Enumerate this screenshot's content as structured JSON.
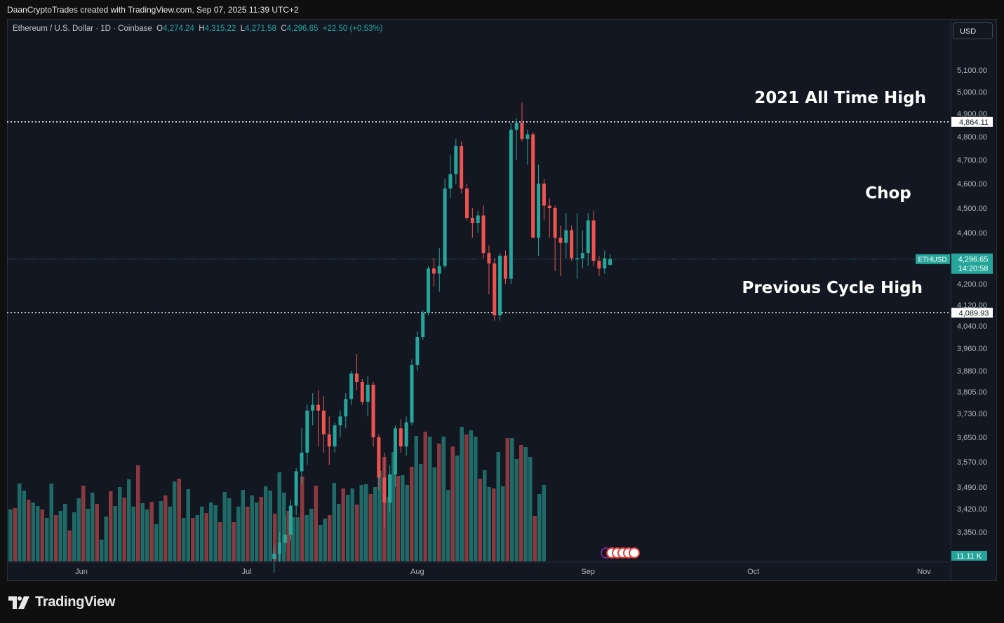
{
  "header": {
    "attribution": "DaanCryptoTrades created with TradingView.com, Sep 07, 2025 11:39 UTC+2"
  },
  "legend": {
    "symbol": "Ethereum / U.S. Dollar · 1D · Coinbase",
    "open_label": "O",
    "open": "4,274.24",
    "high_label": "H",
    "high": "4,315.22",
    "low_label": "L",
    "low": "4,271.58",
    "close_label": "C",
    "close": "4,296.65",
    "change": "+22.50 (+0.53%)"
  },
  "currency": "USD",
  "brand": "TradingView",
  "colors": {
    "up": "#26a69a",
    "down": "#ef5350",
    "up_vol": "#1f6a66",
    "down_vol": "#8a3a3f",
    "background": "#131722",
    "axis_text": "#b2b5be"
  },
  "chart_data": {
    "type": "candlestick",
    "symbol": "ETHUSD",
    "yticks": [
      "5,100.00",
      "5,000.00",
      "4,900.00",
      "4,800.00",
      "4,700.00",
      "4,600.00",
      "4,500.00",
      "4,400.00",
      "4,200.00",
      "4,120.00",
      "4,040.00",
      "3,960.00",
      "3,880.00",
      "3,805.00",
      "3,730.00",
      "3,650.00",
      "3,570.00",
      "3,490.00",
      "3,420.00",
      "3,350.00"
    ],
    "xticks": [
      "Jun",
      "Jul",
      "Aug",
      "Sep",
      "Oct",
      "Nov"
    ],
    "last_price": {
      "label": "ETHUSD",
      "value": "4,296.65",
      "countdown": "14:20:58"
    },
    "volume_label": "11.11 K",
    "lines": [
      {
        "value": "4,864.11",
        "label": "2021 All Time High"
      },
      {
        "value": "4,089.93",
        "label": "Previous Cycle High"
      }
    ],
    "annotations": [
      "Chop"
    ],
    "candles_start": "2025-07-06",
    "candles": [
      [
        3250,
        3300,
        3200,
        3270
      ],
      [
        3270,
        3350,
        3240,
        3310
      ],
      [
        3310,
        3400,
        3280,
        3340
      ],
      [
        3340,
        3450,
        3320,
        3430
      ],
      [
        3430,
        3550,
        3400,
        3540
      ],
      [
        3540,
        3680,
        3500,
        3600
      ],
      [
        3600,
        3760,
        3560,
        3740
      ],
      [
        3740,
        3800,
        3690,
        3760
      ],
      [
        3760,
        3810,
        3620,
        3740
      ],
      [
        3740,
        3790,
        3600,
        3660
      ],
      [
        3660,
        3720,
        3560,
        3620
      ],
      [
        3620,
        3700,
        3600,
        3690
      ],
      [
        3690,
        3740,
        3650,
        3720
      ],
      [
        3720,
        3800,
        3680,
        3780
      ],
      [
        3780,
        3880,
        3760,
        3870
      ],
      [
        3870,
        3940,
        3810,
        3840
      ],
      [
        3840,
        3850,
        3760,
        3770
      ],
      [
        3770,
        3860,
        3720,
        3830
      ],
      [
        3830,
        3840,
        3620,
        3650
      ],
      [
        3650,
        3660,
        3480,
        3520
      ],
      [
        3520,
        3600,
        3360,
        3440
      ],
      [
        3440,
        3560,
        3410,
        3530
      ],
      [
        3530,
        3690,
        3490,
        3680
      ],
      [
        3680,
        3710,
        3600,
        3620
      ],
      [
        3620,
        3720,
        3590,
        3700
      ],
      [
        3700,
        3920,
        3690,
        3900
      ],
      [
        3900,
        4020,
        3880,
        4000
      ],
      [
        4000,
        4100,
        3990,
        4090
      ],
      [
        4090,
        4270,
        4080,
        4260
      ],
      [
        4260,
        4300,
        4190,
        4240
      ],
      [
        4240,
        4340,
        4170,
        4270
      ],
      [
        4270,
        4620,
        4260,
        4580
      ],
      [
        4580,
        4720,
        4540,
        4640
      ],
      [
        4640,
        4790,
        4600,
        4760
      ],
      [
        4760,
        4780,
        4560,
        4580
      ],
      [
        4580,
        4600,
        4450,
        4460
      ],
      [
        4460,
        4500,
        4380,
        4440
      ],
      [
        4440,
        4490,
        4400,
        4470
      ],
      [
        4470,
        4510,
        4300,
        4320
      ],
      [
        4320,
        4350,
        4160,
        4280
      ],
      [
        4280,
        4300,
        4060,
        4080
      ],
      [
        4080,
        4320,
        4060,
        4310
      ],
      [
        4310,
        4330,
        4200,
        4220
      ],
      [
        4220,
        4860,
        4200,
        4830
      ],
      [
        4830,
        4880,
        4700,
        4860
      ],
      [
        4860,
        4950,
        4780,
        4790
      ],
      [
        4790,
        4830,
        4680,
        4810
      ],
      [
        4810,
        4820,
        4380,
        4380
      ],
      [
        4380,
        4680,
        4310,
        4600
      ],
      [
        4600,
        4620,
        4450,
        4510
      ],
      [
        4510,
        4540,
        4380,
        4500
      ],
      [
        4500,
        4510,
        4250,
        4380
      ],
      [
        4380,
        4430,
        4230,
        4360
      ],
      [
        4360,
        4480,
        4300,
        4410
      ],
      [
        4410,
        4430,
        4290,
        4300
      ],
      [
        4300,
        4480,
        4220,
        4300
      ],
      [
        4300,
        4410,
        4260,
        4320
      ],
      [
        4320,
        4480,
        4270,
        4450
      ],
      [
        4450,
        4490,
        4270,
        4290
      ],
      [
        4290,
        4310,
        4230,
        4260
      ],
      [
        4260,
        4330,
        4240,
        4300
      ],
      [
        4274,
        4315,
        4271,
        4297
      ]
    ]
  }
}
